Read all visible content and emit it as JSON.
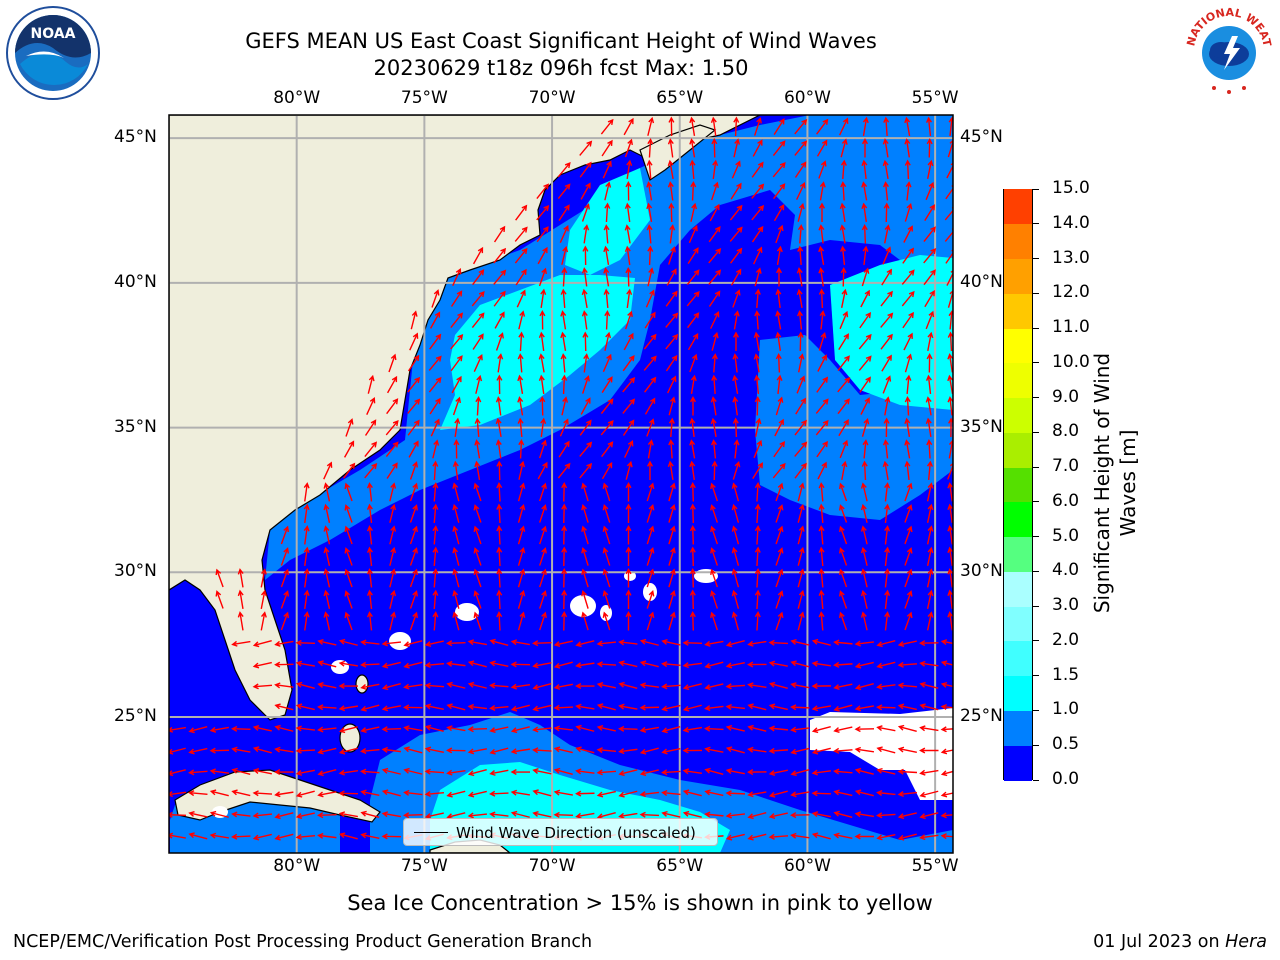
{
  "title": {
    "line1": "GEFS MEAN US East Coast Significant Height of Wind Waves",
    "line2": "20230629 t18z 096h fcst   Max: 1.50"
  },
  "map": {
    "lon_range": [
      -85,
      -54.3
    ],
    "lat_range": [
      20.3,
      45.8
    ],
    "lon_ticks": [
      {
        "value": -80,
        "label": "80°W"
      },
      {
        "value": -75,
        "label": "75°W"
      },
      {
        "value": -70,
        "label": "70°W"
      },
      {
        "value": -65,
        "label": "65°W"
      },
      {
        "value": -60,
        "label": "60°W"
      },
      {
        "value": -55,
        "label": "55°W"
      }
    ],
    "lat_ticks": [
      {
        "value": 45,
        "label": "45°N"
      },
      {
        "value": 40,
        "label": "40°N"
      },
      {
        "value": 35,
        "label": "35°N"
      },
      {
        "value": 30,
        "label": "30°N"
      },
      {
        "value": 25,
        "label": "25°N"
      }
    ],
    "land_color": "#efeedc",
    "grid_color": "#b0b0b0",
    "arrow_color": "#ff0000"
  },
  "colorbar": {
    "label": "Significant Height of Wind Waves [m]",
    "label_line1": "Significant Height of Wind",
    "label_line2": "Waves [m]",
    "ticks": [
      "0.0",
      "0.5",
      "1.0",
      "1.5",
      "2.0",
      "3.0",
      "4.0",
      "5.0",
      "6.0",
      "7.0",
      "8.0",
      "9.0",
      "10.0",
      "11.0",
      "12.0",
      "13.0",
      "14.0",
      "15.0"
    ],
    "colors": [
      "#0000ff",
      "#0080ff",
      "#00ffff",
      "#40ffff",
      "#80ffff",
      "#aaffff",
      "#55ff80",
      "#00ff00",
      "#55e000",
      "#aaee00",
      "#ccff00",
      "#eeff00",
      "#ffff00",
      "#ffc800",
      "#ffa000",
      "#ff8000",
      "#ff4000",
      "#ff0000"
    ]
  },
  "legend": {
    "label": "Wind Wave Direction (unscaled)"
  },
  "caption": "Sea Ice Concentration > 15% is shown in pink to yellow",
  "footer": {
    "left": "NCEP/EMC/Verification Post Processing Product Generation Branch",
    "right_date": "01 Jul 2023 on ",
    "right_host": "Hera"
  },
  "logos": {
    "left": {
      "name": "noaa-logo",
      "text": "NOAA"
    },
    "right": {
      "name": "nws-logo"
    }
  }
}
